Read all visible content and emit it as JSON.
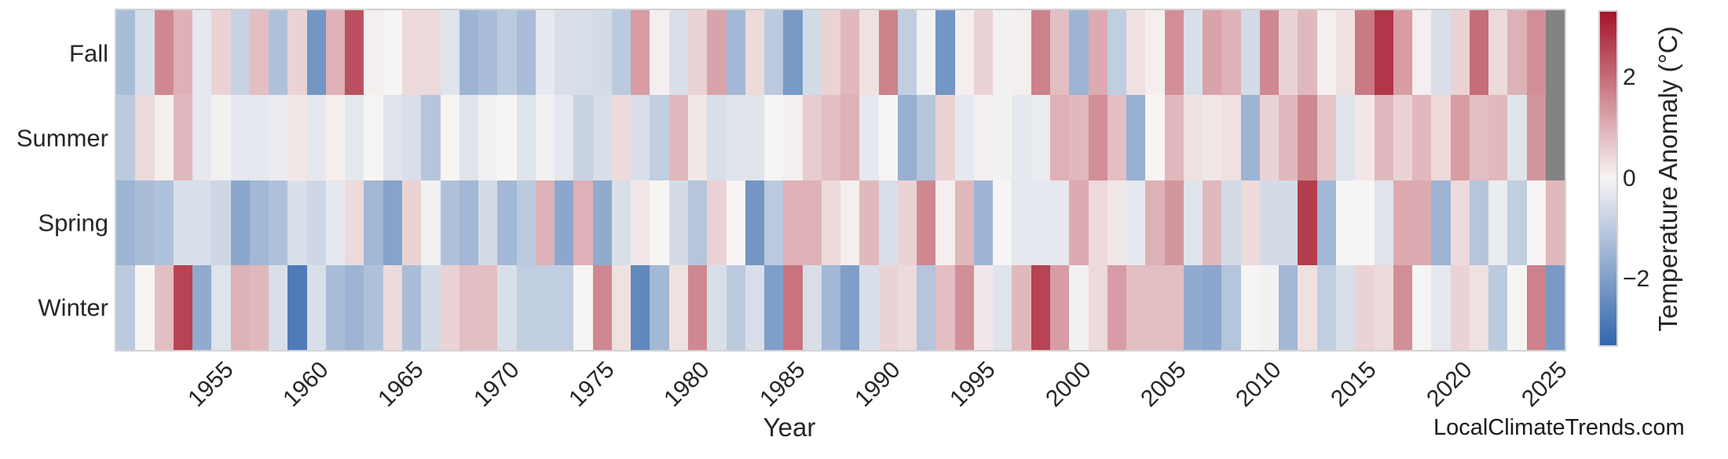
{
  "watermark": "LocalClimateTrends.com",
  "chart_data": {
    "type": "heatmap",
    "title": "",
    "xlabel": "Year",
    "ylabel": "",
    "rows": [
      "Fall",
      "Summer",
      "Spring",
      "Winter"
    ],
    "x_years": {
      "start": 1950,
      "end": 2025
    },
    "x_ticks": [
      1955,
      1960,
      1965,
      1970,
      1975,
      1980,
      1985,
      1990,
      1995,
      2000,
      2005,
      2010,
      2015,
      2020,
      2025
    ],
    "grid": false,
    "legend_position": "right-colorbar",
    "series": [
      {
        "name": "Fall",
        "values": [
          -1.3,
          -0.5,
          1.6,
          1.0,
          -0.3,
          0.5,
          -0.8,
          0.8,
          -1.2,
          0.5,
          -2.2,
          1.0,
          2.4,
          0.1,
          0.0,
          0.4,
          0.4,
          -0.4,
          -1.5,
          -1.3,
          -1.0,
          -1.3,
          -0.3,
          -0.5,
          -0.5,
          -0.6,
          -1.0,
          1.3,
          0.1,
          -0.5,
          0.5,
          1.2,
          -1.4,
          0.4,
          -1.0,
          -2.1,
          -0.6,
          0.5,
          0.9,
          0.3,
          1.7,
          -0.9,
          -0.1,
          -2.2,
          0.1,
          0.5,
          -0.1,
          0.1,
          1.7,
          0.8,
          -1.5,
          1.1,
          -0.9,
          0.3,
          0.1,
          1.5,
          -0.5,
          1.2,
          1.0,
          -0.6,
          1.6,
          0.5,
          0.9,
          0.1,
          0.3,
          1.8,
          2.8,
          1.3,
          0.1,
          -0.5,
          0.5,
          2.0,
          0.4,
          1.0,
          1.5,
          null
        ]
      },
      {
        "name": "Summer",
        "values": [
          -1.0,
          0.4,
          0.1,
          0.9,
          -0.3,
          -0.1,
          -0.3,
          -0.3,
          -0.2,
          0.2,
          -0.3,
          0.1,
          -0.3,
          0.0,
          -0.4,
          -0.5,
          -1.1,
          0.0,
          -0.4,
          -0.1,
          0.0,
          -0.4,
          -0.1,
          -0.3,
          -0.8,
          -0.5,
          0.4,
          -0.5,
          -0.9,
          0.9,
          0.2,
          -0.5,
          -0.4,
          -0.4,
          0.0,
          0.1,
          0.6,
          0.8,
          1.0,
          -0.3,
          0.0,
          -1.6,
          -1.1,
          0.5,
          -0.3,
          0.1,
          -0.1,
          -0.3,
          -0.2,
          1.0,
          0.9,
          1.5,
          0.8,
          -1.6,
          0.0,
          0.9,
          0.3,
          0.2,
          0.3,
          -1.5,
          0.5,
          0.9,
          1.6,
          0.7,
          -0.4,
          0.2,
          0.9,
          0.5,
          0.9,
          0.4,
          1.3,
          0.8,
          0.9,
          -0.4,
          1.4,
          null
        ]
      },
      {
        "name": "Spring",
        "values": [
          -1.5,
          -1.3,
          -1.2,
          -0.5,
          -0.5,
          -0.7,
          -1.8,
          -1.4,
          -1.2,
          -0.5,
          -0.7,
          -0.3,
          0.4,
          -1.4,
          -1.9,
          0.5,
          -0.1,
          -1.2,
          -1.4,
          -0.6,
          -1.4,
          -1.0,
          1.0,
          -1.8,
          1.0,
          -1.7,
          -0.5,
          0.2,
          0.0,
          -0.6,
          -1.1,
          0.5,
          0.0,
          -2.2,
          -1.0,
          1.0,
          1.0,
          0.4,
          0.1,
          0.9,
          -0.5,
          0.5,
          1.6,
          0.1,
          0.9,
          -1.5,
          0.0,
          -0.3,
          -0.3,
          -0.3,
          1.1,
          0.4,
          0.2,
          -0.3,
          1.0,
          1.4,
          -0.4,
          0.9,
          -0.6,
          0.4,
          -0.6,
          -0.6,
          2.7,
          -1.4,
          0.0,
          0.0,
          -0.4,
          1.1,
          1.1,
          -1.5,
          0.4,
          -1.1,
          -0.2,
          -0.9,
          0.0,
          0.9
        ]
      },
      {
        "name": "Winter",
        "values": [
          -1.0,
          0.0,
          0.8,
          2.6,
          -1.7,
          -0.4,
          1.0,
          0.9,
          -0.5,
          -2.8,
          -0.5,
          -1.3,
          -1.5,
          -1.2,
          0.4,
          -1.3,
          -0.6,
          0.5,
          0.8,
          0.8,
          -0.5,
          -0.9,
          -0.9,
          -0.9,
          0.0,
          1.6,
          0.3,
          -2.5,
          -1.4,
          0.3,
          1.6,
          -0.5,
          -1.0,
          -0.5,
          -2.0,
          1.9,
          -0.5,
          -1.4,
          -2.0,
          -0.5,
          0.5,
          0.4,
          -1.1,
          0.8,
          1.5,
          0.2,
          -0.4,
          0.9,
          2.6,
          1.3,
          -0.1,
          0.4,
          1.3,
          0.8,
          0.8,
          0.8,
          -1.7,
          -1.8,
          -1.1,
          0.0,
          -0.1,
          -1.4,
          0.3,
          -0.9,
          -0.5,
          0.5,
          0.4,
          1.5,
          0.0,
          -0.3,
          0.5,
          0.3,
          -1.0,
          0.0,
          1.7,
          -2.1
        ]
      }
    ],
    "missing_note": "Fall 2025 and Summer 2025 shown as gray (no data)",
    "colorbar": {
      "label": "Temperature Anomaly (°C)",
      "vmin": -3.3,
      "vmax": 3.3,
      "ticks": [
        {
          "value": 2,
          "label": "2"
        },
        {
          "value": 0,
          "label": "0"
        },
        {
          "value": -2,
          "label": "−2"
        }
      ]
    },
    "colors": {
      "positive_max": "#a51428",
      "zero": "#f7f5f4",
      "negative_max": "#3166ad",
      "missing": "#838383",
      "frame": "#d2d2d2",
      "text": "#262626"
    }
  }
}
